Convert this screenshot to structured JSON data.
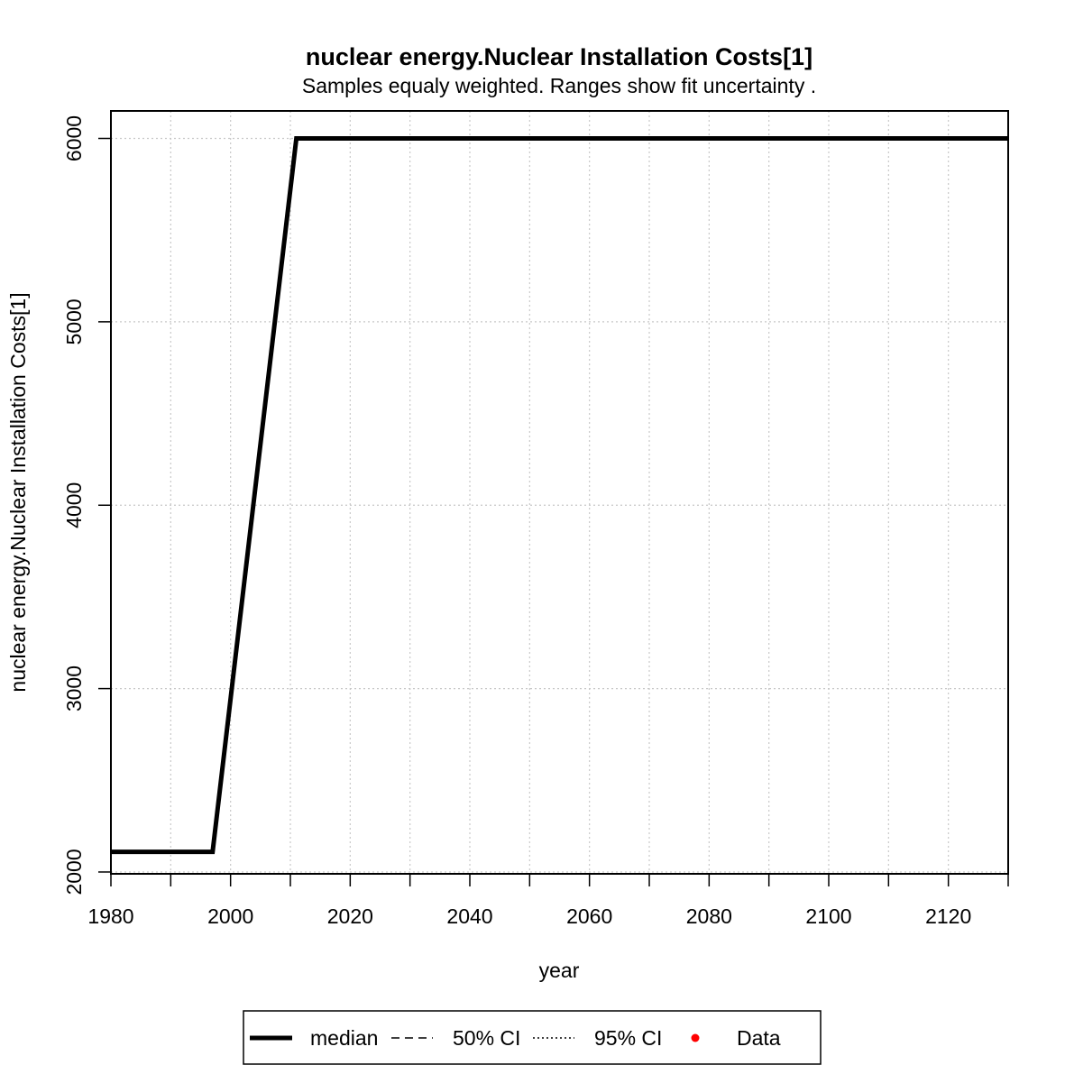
{
  "chart_data": {
    "type": "line",
    "title": "nuclear energy.Nuclear Installation Costs[1]",
    "subtitle": "Samples equaly weighted. Ranges show  fit uncertainty .",
    "xlabel": "year",
    "ylabel": "nuclear energy.Nuclear Installation Costs[1]",
    "xlim": [
      1980,
      2130
    ],
    "ylim": [
      1990,
      6150
    ],
    "x_ticks": [
      1980,
      2000,
      2020,
      2040,
      2060,
      2080,
      2100,
      2120
    ],
    "x_minor_ticks": [
      1990,
      2010,
      2030,
      2050,
      2070,
      2090,
      2110,
      2130
    ],
    "y_ticks": [
      2000,
      3000,
      4000,
      5000,
      6000
    ],
    "grid": true,
    "series": [
      {
        "name": "median",
        "color": "#000000",
        "x": [
          1980,
          1997,
          2011,
          2130
        ],
        "y": [
          2110,
          2110,
          6000,
          6000
        ]
      }
    ],
    "legend": {
      "position": "bottom",
      "entries": [
        {
          "label": "median",
          "style": "solid"
        },
        {
          "label": "50% CI",
          "style": "dashed"
        },
        {
          "label": "95% CI",
          "style": "dotted"
        },
        {
          "label": "Data",
          "style": "point",
          "color": "#ff0000"
        }
      ]
    }
  }
}
